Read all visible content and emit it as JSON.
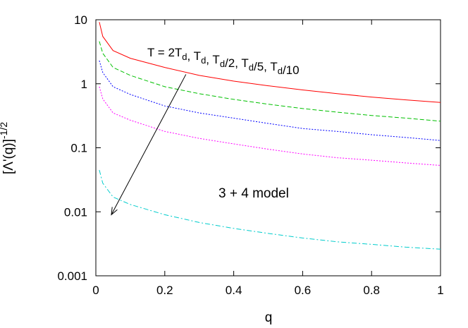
{
  "chart_data": {
    "type": "line",
    "title": "",
    "xlabel": "q",
    "ylabel": "[Λ'(q)]-1/2",
    "ylabel_parts": {
      "base": "[Λ'(q)]",
      "exponent": "-1/2"
    },
    "xlim": [
      0,
      1
    ],
    "ylim": [
      0.001,
      10
    ],
    "yscale": "log",
    "grid": false,
    "legend": "none",
    "x_ticks": [
      "0",
      "0.2",
      "0.4",
      "0.6",
      "0.8",
      "1"
    ],
    "y_ticks": [
      "10",
      "1",
      "0.1",
      "0.01",
      "0.001"
    ],
    "annotations": {
      "temperatures": "T = 2Td, Td, Td/2, Td/5, Td/10",
      "temperatures_parts": [
        {
          "text": "T = 2T",
          "sub": "d"
        },
        {
          "text": ", T",
          "sub": "d"
        },
        {
          "text": ", T",
          "sub": "d"
        },
        {
          "text": "/2, T",
          "sub": "d"
        },
        {
          "text": "/5, T",
          "sub": "d"
        },
        {
          "text": "/10",
          "sub": ""
        }
      ],
      "model": "3 + 4 model"
    },
    "series": [
      {
        "color": "#ff0000",
        "dash": "solid",
        "x": [
          0.01,
          0.02,
          0.05,
          0.1,
          0.2,
          0.3,
          0.4,
          0.5,
          0.6,
          0.7,
          0.8,
          0.9,
          1.0
        ],
        "y": [
          9.2,
          5.5,
          3.3,
          2.5,
          1.8,
          1.35,
          1.1,
          0.93,
          0.8,
          0.7,
          0.62,
          0.56,
          0.51
        ]
      },
      {
        "color": "#00c000",
        "dash": "dashed",
        "x": [
          0.01,
          0.02,
          0.05,
          0.1,
          0.2,
          0.3,
          0.4,
          0.5,
          0.6,
          0.7,
          0.8,
          0.9,
          1.0
        ],
        "y": [
          4.6,
          3.0,
          1.8,
          1.35,
          0.9,
          0.7,
          0.57,
          0.48,
          0.41,
          0.36,
          0.32,
          0.29,
          0.26
        ]
      },
      {
        "color": "#0000ff",
        "dash": "dotted",
        "x": [
          0.01,
          0.02,
          0.05,
          0.1,
          0.2,
          0.3,
          0.4,
          0.5,
          0.6,
          0.7,
          0.8,
          0.9,
          1.0
        ],
        "y": [
          2.3,
          1.5,
          0.9,
          0.68,
          0.45,
          0.35,
          0.29,
          0.24,
          0.2,
          0.18,
          0.16,
          0.145,
          0.13
        ]
      },
      {
        "color": "#ff00ff",
        "dash": "dotted",
        "x": [
          0.01,
          0.02,
          0.05,
          0.1,
          0.2,
          0.3,
          0.4,
          0.5,
          0.6,
          0.7,
          0.8,
          0.9,
          1.0
        ],
        "y": [
          0.9,
          0.58,
          0.35,
          0.27,
          0.18,
          0.14,
          0.115,
          0.095,
          0.08,
          0.07,
          0.064,
          0.058,
          0.053
        ]
      },
      {
        "color": "#00cccc",
        "dash": "dashdot",
        "x": [
          0.01,
          0.02,
          0.05,
          0.1,
          0.2,
          0.3,
          0.4,
          0.5,
          0.6,
          0.7,
          0.8,
          0.9,
          1.0
        ],
        "y": [
          0.045,
          0.028,
          0.017,
          0.013,
          0.009,
          0.0068,
          0.0055,
          0.0046,
          0.0039,
          0.0034,
          0.0031,
          0.0028,
          0.0026
        ]
      }
    ],
    "arrow": {
      "from": [
        0.2,
        3.0
      ],
      "to": [
        0.045,
        0.009
      ]
    }
  }
}
